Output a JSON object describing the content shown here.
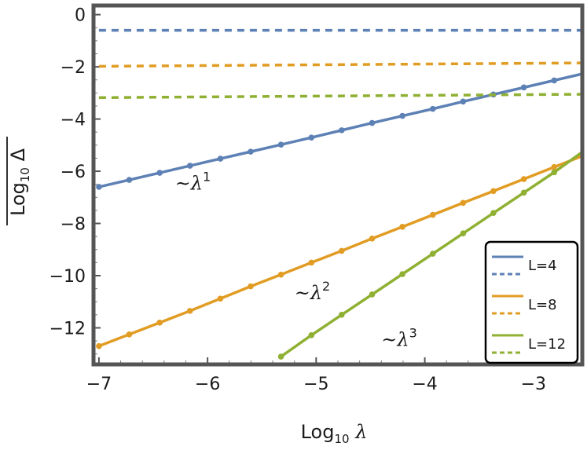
{
  "chart_data": {
    "type": "line",
    "xlabel": "Log10 λ",
    "ylabel": "Log10 Δ",
    "xlim": [
      -7.05,
      -2.55
    ],
    "ylim": [
      -13.4,
      0.35
    ],
    "xticks": [
      -7,
      -6,
      -5,
      -4,
      -3
    ],
    "yticks": [
      0,
      -2,
      -4,
      -6,
      -8,
      -10,
      -12
    ],
    "xtick_labels": [
      "−7",
      "−6",
      "−5",
      "−4",
      "−3"
    ],
    "ytick_labels": [
      "0",
      "−2",
      "−4",
      "−6",
      "−8",
      "−10",
      "−12"
    ],
    "annotations": [
      {
        "text": "~λ",
        "exp": "1",
        "x": -6.3,
        "y": -6.7
      },
      {
        "text": "~λ",
        "exp": "2",
        "x": -5.2,
        "y": -10.9
      },
      {
        "text": "~λ",
        "exp": "3",
        "x": -4.4,
        "y": -12.7
      }
    ],
    "colors": {
      "L4": "#5e81b5",
      "L8": "#e19c24",
      "L12": "#8fb032"
    },
    "legend": {
      "placement": "bottom-right",
      "entries": [
        "L=4",
        "L=8",
        "L=12"
      ]
    },
    "series": [
      {
        "name": "L=4",
        "style": "solid",
        "markers": true,
        "color": "#5e81b5",
        "x": [
          -7.0,
          -6.721,
          -6.441,
          -6.162,
          -5.882,
          -5.603,
          -5.324,
          -5.044,
          -4.765,
          -4.485,
          -4.206,
          -3.926,
          -3.647,
          -3.368,
          -3.088,
          -2.809,
          -2.529
        ],
        "y": [
          -6.6,
          -6.33,
          -6.06,
          -5.79,
          -5.52,
          -5.25,
          -4.98,
          -4.71,
          -4.43,
          -4.15,
          -3.88,
          -3.61,
          -3.33,
          -3.06,
          -2.79,
          -2.52,
          -2.25
        ]
      },
      {
        "name": "L=4",
        "style": "dashed",
        "markers": false,
        "color": "#5e81b5",
        "x": [
          -7.0,
          -2.529
        ],
        "y": [
          -0.6,
          -0.6
        ]
      },
      {
        "name": "L=8",
        "style": "solid",
        "markers": true,
        "color": "#e19c24",
        "x": [
          -7.0,
          -6.721,
          -6.441,
          -6.162,
          -5.882,
          -5.603,
          -5.324,
          -5.044,
          -4.765,
          -4.485,
          -4.206,
          -3.926,
          -3.647,
          -3.368,
          -3.088,
          -2.809,
          -2.529
        ],
        "y": [
          -12.7,
          -12.25,
          -11.8,
          -11.35,
          -10.88,
          -10.41,
          -9.96,
          -9.5,
          -9.05,
          -8.58,
          -8.13,
          -7.67,
          -7.21,
          -6.76,
          -6.3,
          -5.84,
          -5.38
        ]
      },
      {
        "name": "L=8",
        "style": "dashed",
        "markers": false,
        "color": "#e19c24",
        "x": [
          -7.0,
          -2.529
        ],
        "y": [
          -1.98,
          -1.85
        ]
      },
      {
        "name": "L=12",
        "style": "solid",
        "markers": true,
        "color": "#8fb032",
        "x": [
          -5.324,
          -5.044,
          -4.765,
          -4.485,
          -4.206,
          -3.926,
          -3.647,
          -3.368,
          -3.088,
          -2.809,
          -2.529
        ],
        "y": [
          -13.1,
          -12.28,
          -11.5,
          -10.72,
          -9.94,
          -9.16,
          -8.38,
          -7.6,
          -6.82,
          -6.04,
          -5.2
        ]
      },
      {
        "name": "L=12",
        "style": "dashed",
        "markers": false,
        "color": "#8fb032",
        "x": [
          -7.0,
          -2.529
        ],
        "y": [
          -3.18,
          -3.05
        ]
      }
    ]
  }
}
